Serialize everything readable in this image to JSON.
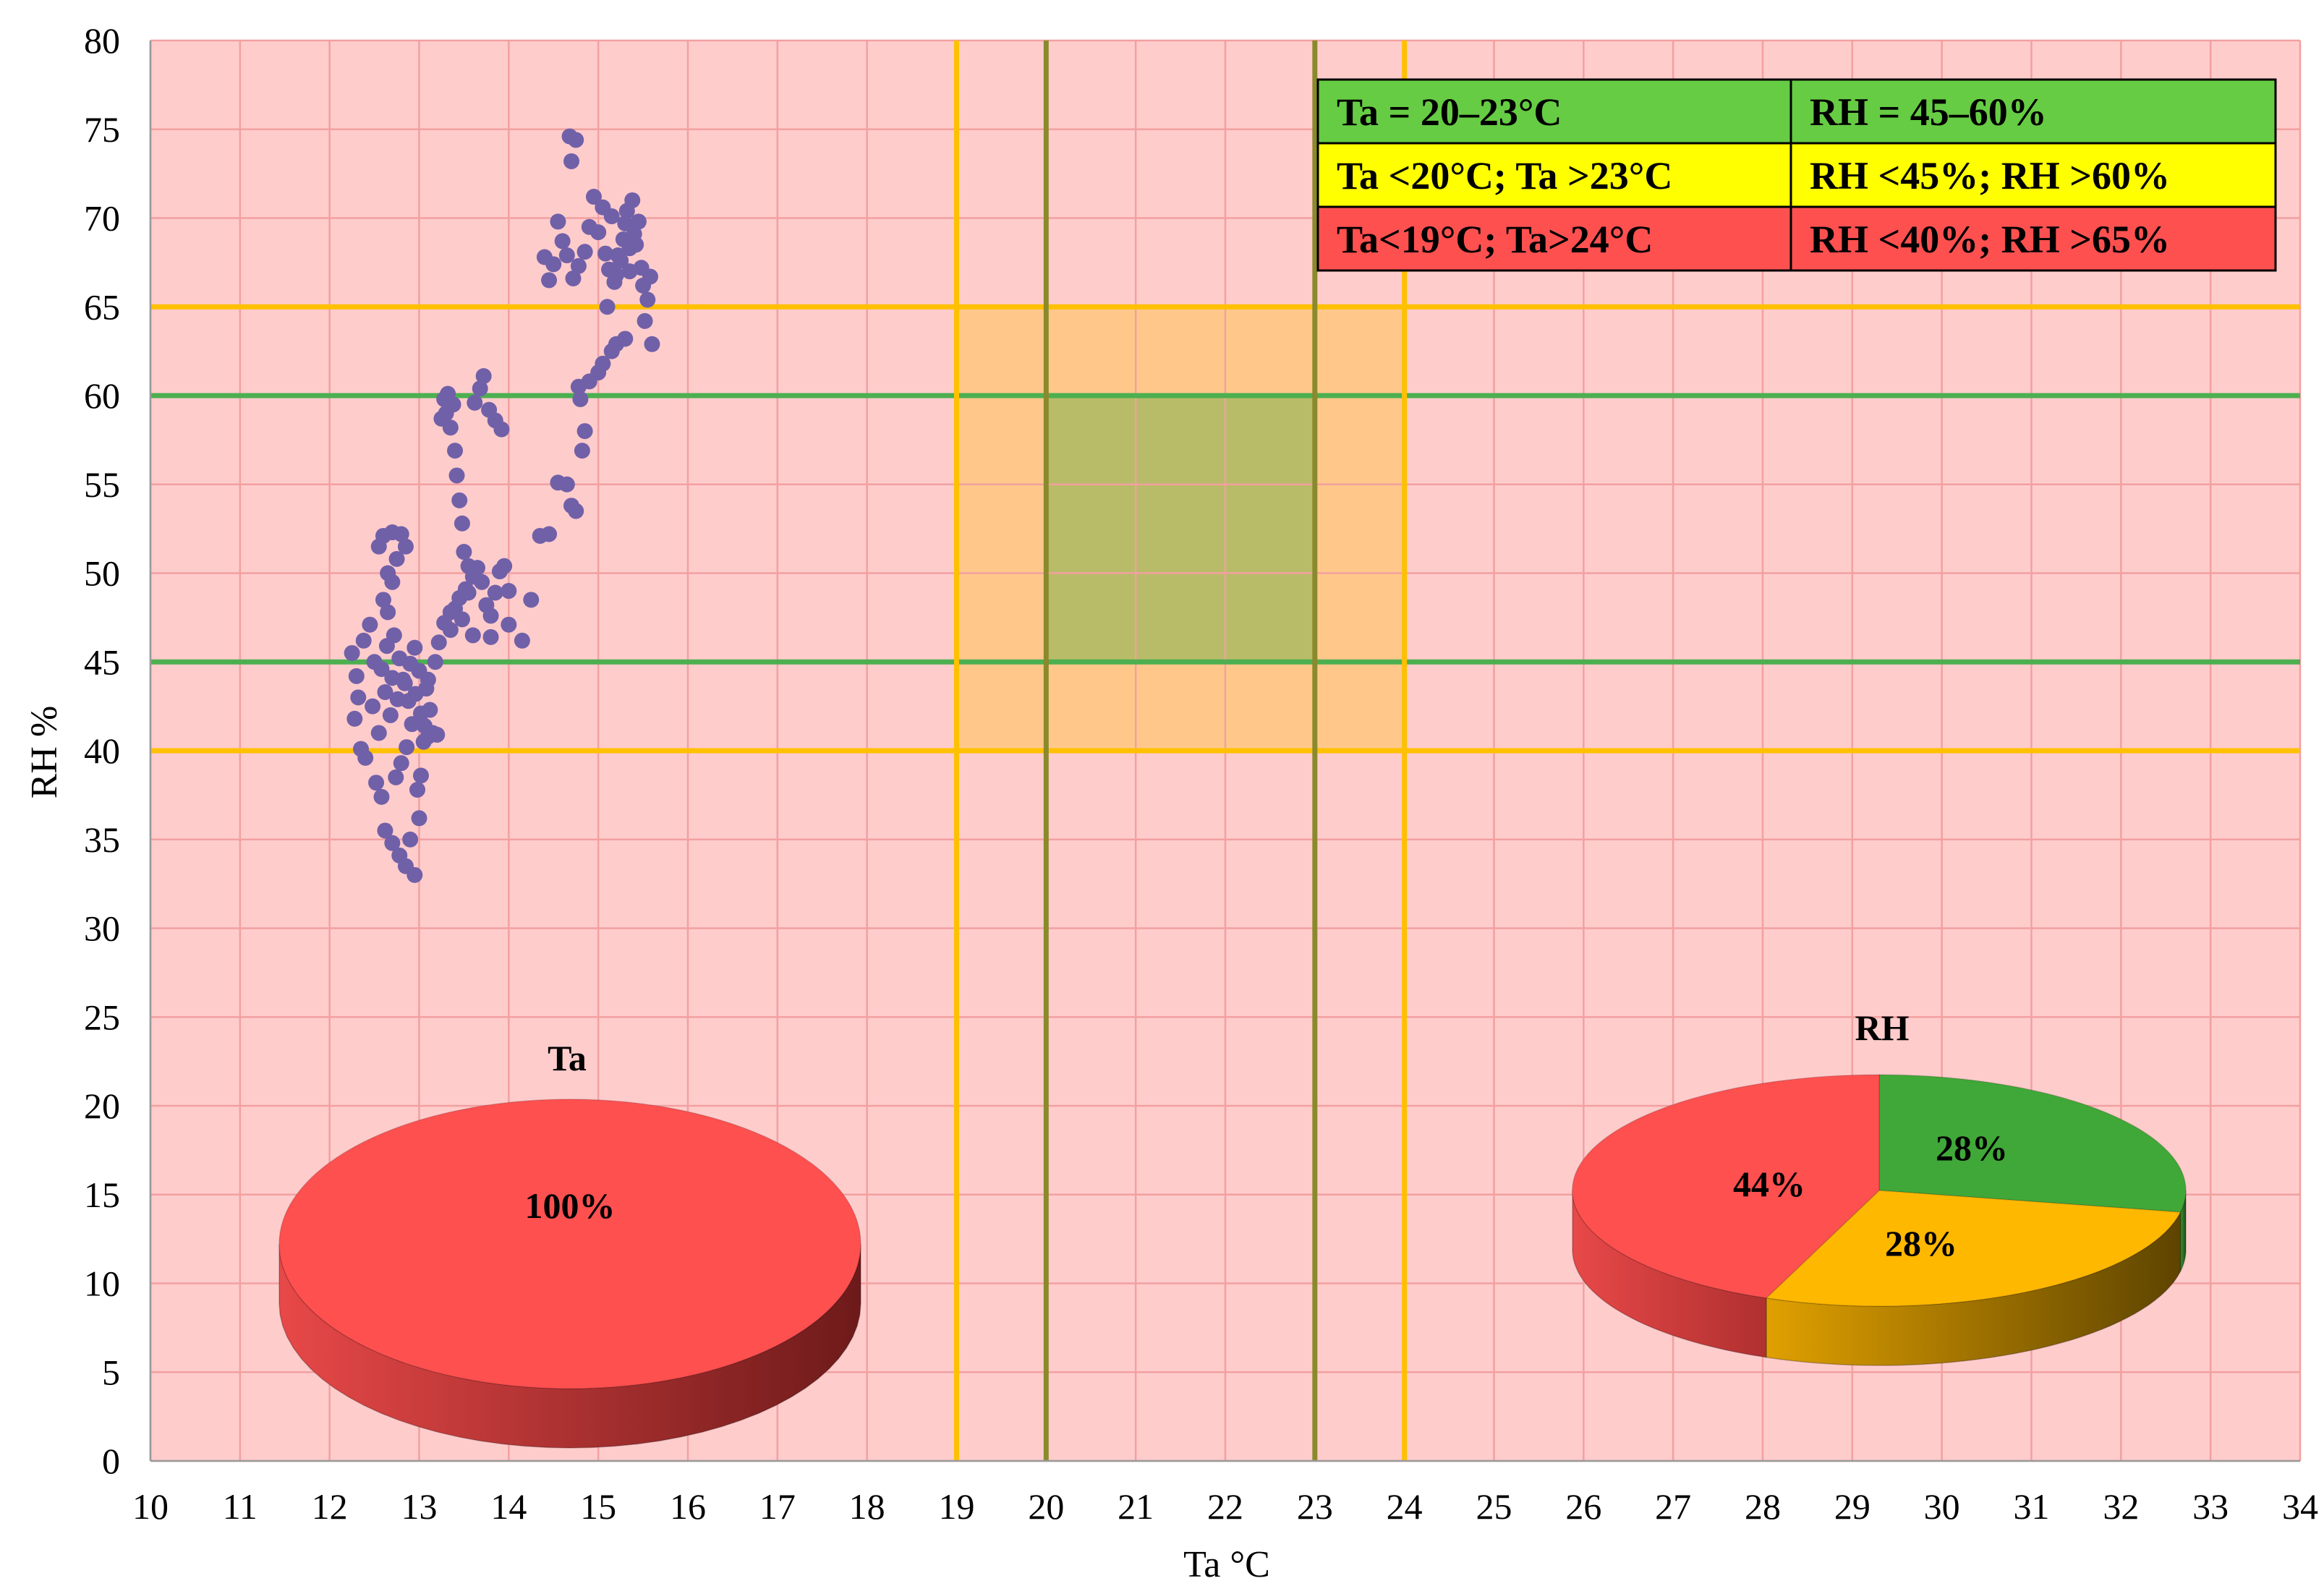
{
  "chart_data": {
    "type": "scatter",
    "xlabel": "Ta °C",
    "ylabel": "RH %",
    "xlim": [
      10,
      34
    ],
    "ylim": [
      0,
      80
    ],
    "x_ticks": [
      "10",
      "11",
      "12",
      "13",
      "14",
      "15",
      "16",
      "17",
      "18",
      "19",
      "20",
      "21",
      "22",
      "23",
      "24",
      "25",
      "26",
      "27",
      "28",
      "29",
      "30",
      "31",
      "32",
      "33",
      "34"
    ],
    "y_ticks": [
      "0",
      "5",
      "10",
      "15",
      "20",
      "25",
      "30",
      "35",
      "40",
      "45",
      "50",
      "55",
      "60",
      "65",
      "70",
      "75",
      "80"
    ],
    "grid": true,
    "background_color": "#FFCCCC",
    "grid_color": "#F2A0A0",
    "point_color": "#7060A8",
    "reference_lines": {
      "vertical": [
        {
          "x": 19,
          "color": "#FFC000"
        },
        {
          "x": 20,
          "color": "#8A8A2C"
        },
        {
          "x": 23,
          "color": "#8A8A2C"
        },
        {
          "x": 24,
          "color": "#FFC000"
        }
      ],
      "horizontal": [
        {
          "y": 40,
          "color": "#FFC000"
        },
        {
          "y": 45,
          "color": "#4CAF50"
        },
        {
          "y": 60,
          "color": "#4CAF50"
        },
        {
          "y": 65,
          "color": "#FFC000"
        }
      ]
    },
    "zones": [
      {
        "x": [
          19,
          24
        ],
        "y": [
          40,
          65
        ],
        "color": "#FFC88A"
      },
      {
        "x": [
          20,
          23
        ],
        "y": [
          45,
          60
        ],
        "color": "#B8BC68"
      }
    ],
    "legend_table": [
      {
        "ta": "Ta = 20–23°C",
        "rh": "RH = 45–60%",
        "color": "#66CC44"
      },
      {
        "ta": "Ta <20°C; Ta >23°C",
        "rh": "RH <45%; RH >60%",
        "color": "#FFFF00"
      },
      {
        "ta": "Ta<19°C; Ta>24°C",
        "rh": "RH <40%; RH >65%",
        "color": "#FF5050"
      }
    ],
    "series": [
      {
        "points": [
          [
            12.25,
            45.5
          ],
          [
            12.3,
            44.2
          ],
          [
            12.32,
            43.0
          ],
          [
            12.28,
            41.8
          ],
          [
            12.35,
            40.1
          ],
          [
            12.4,
            39.6
          ],
          [
            12.38,
            46.2
          ],
          [
            12.45,
            47.1
          ],
          [
            12.5,
            45.0
          ],
          [
            12.48,
            42.5
          ],
          [
            12.55,
            41.0
          ],
          [
            12.52,
            38.2
          ],
          [
            12.58,
            37.4
          ],
          [
            12.62,
            35.5
          ],
          [
            12.7,
            34.8
          ],
          [
            12.78,
            34.1
          ],
          [
            12.85,
            33.5
          ],
          [
            12.95,
            33.0
          ],
          [
            12.9,
            35.0
          ],
          [
            13.0,
            36.2
          ],
          [
            12.98,
            37.8
          ],
          [
            13.02,
            38.6
          ],
          [
            13.05,
            40.5
          ],
          [
            13.1,
            40.8
          ],
          [
            13.15,
            41.0
          ],
          [
            13.2,
            40.9
          ],
          [
            13.12,
            42.3
          ],
          [
            13.08,
            43.5
          ],
          [
            13.0,
            44.5
          ],
          [
            12.95,
            45.8
          ],
          [
            12.6,
            48.5
          ],
          [
            12.65,
            50.0
          ],
          [
            12.55,
            51.5
          ],
          [
            12.6,
            52.1
          ],
          [
            12.7,
            52.3
          ],
          [
            12.8,
            52.2
          ],
          [
            12.85,
            51.5
          ],
          [
            12.75,
            50.8
          ],
          [
            12.7,
            49.5
          ],
          [
            12.65,
            47.8
          ],
          [
            12.72,
            46.5
          ],
          [
            12.78,
            45.2
          ],
          [
            12.82,
            44.0
          ],
          [
            12.88,
            42.8
          ],
          [
            12.92,
            41.5
          ],
          [
            12.86,
            40.2
          ],
          [
            12.8,
            39.3
          ],
          [
            12.74,
            38.5
          ],
          [
            12.68,
            42.0
          ],
          [
            12.62,
            43.3
          ],
          [
            12.58,
            44.6
          ],
          [
            12.64,
            45.9
          ],
          [
            12.7,
            44.1
          ],
          [
            12.76,
            42.9
          ],
          [
            12.84,
            43.8
          ],
          [
            12.9,
            44.9
          ],
          [
            12.96,
            43.2
          ],
          [
            13.02,
            42.1
          ],
          [
            13.06,
            41.4
          ],
          [
            13.1,
            44.0
          ],
          [
            13.18,
            45.0
          ],
          [
            13.22,
            46.1
          ],
          [
            13.28,
            47.2
          ],
          [
            13.35,
            47.8
          ],
          [
            13.25,
            58.7
          ],
          [
            13.3,
            59.0
          ],
          [
            13.28,
            59.8
          ],
          [
            13.32,
            60.1
          ],
          [
            13.38,
            59.5
          ],
          [
            13.35,
            58.2
          ],
          [
            13.4,
            56.9
          ],
          [
            13.42,
            55.5
          ],
          [
            13.45,
            54.1
          ],
          [
            13.48,
            52.8
          ],
          [
            13.5,
            51.2
          ],
          [
            13.55,
            50.4
          ],
          [
            13.52,
            49.1
          ],
          [
            13.45,
            48.6
          ],
          [
            13.4,
            48.0
          ],
          [
            13.35,
            46.8
          ],
          [
            13.48,
            47.4
          ],
          [
            13.55,
            48.9
          ],
          [
            13.6,
            49.8
          ],
          [
            13.65,
            50.3
          ],
          [
            13.7,
            49.5
          ],
          [
            13.75,
            48.2
          ],
          [
            13.8,
            47.6
          ],
          [
            13.85,
            48.9
          ],
          [
            13.9,
            50.1
          ],
          [
            13.95,
            50.4
          ],
          [
            14.0,
            49.0
          ],
          [
            13.62,
            59.6
          ],
          [
            13.68,
            60.4
          ],
          [
            13.72,
            61.1
          ],
          [
            13.78,
            59.2
          ],
          [
            13.85,
            58.6
          ],
          [
            13.92,
            58.1
          ],
          [
            13.6,
            46.5
          ],
          [
            13.8,
            46.4
          ],
          [
            14.0,
            47.1
          ],
          [
            14.15,
            46.2
          ],
          [
            14.25,
            48.5
          ],
          [
            14.35,
            52.1
          ],
          [
            14.45,
            52.2
          ],
          [
            14.55,
            55.1
          ],
          [
            14.65,
            55.0
          ],
          [
            14.7,
            53.8
          ],
          [
            14.75,
            53.5
          ],
          [
            14.82,
            56.9
          ],
          [
            14.85,
            58.0
          ],
          [
            14.8,
            59.8
          ],
          [
            14.78,
            60.5
          ],
          [
            14.9,
            60.8
          ],
          [
            15.0,
            61.3
          ],
          [
            15.05,
            61.8
          ],
          [
            15.15,
            62.5
          ],
          [
            15.2,
            62.9
          ],
          [
            15.3,
            63.2
          ],
          [
            15.1,
            65.0
          ],
          [
            15.2,
            66.8
          ],
          [
            15.25,
            67.6
          ],
          [
            15.35,
            68.3
          ],
          [
            15.4,
            69.1
          ],
          [
            15.3,
            69.7
          ],
          [
            15.15,
            70.1
          ],
          [
            15.05,
            70.6
          ],
          [
            14.95,
            71.2
          ],
          [
            15.0,
            69.2
          ],
          [
            15.08,
            68.0
          ],
          [
            15.12,
            67.1
          ],
          [
            15.18,
            66.4
          ],
          [
            15.22,
            67.9
          ],
          [
            15.28,
            68.8
          ],
          [
            15.32,
            70.4
          ],
          [
            15.38,
            71.0
          ],
          [
            15.42,
            68.5
          ],
          [
            15.48,
            67.2
          ],
          [
            15.5,
            66.2
          ],
          [
            15.55,
            65.4
          ],
          [
            15.58,
            66.7
          ],
          [
            15.52,
            64.2
          ],
          [
            15.6,
            62.9
          ],
          [
            15.45,
            69.8
          ],
          [
            15.35,
            67.0
          ],
          [
            14.9,
            69.5
          ],
          [
            14.85,
            68.1
          ],
          [
            14.78,
            67.3
          ],
          [
            14.72,
            66.6
          ],
          [
            14.65,
            67.9
          ],
          [
            14.6,
            68.7
          ],
          [
            14.55,
            69.8
          ],
          [
            14.5,
            67.4
          ],
          [
            14.45,
            66.5
          ],
          [
            14.4,
            67.8
          ],
          [
            14.68,
            74.6
          ],
          [
            14.75,
            74.4
          ],
          [
            14.7,
            73.2
          ]
        ]
      }
    ],
    "pies": [
      {
        "title": "Ta",
        "slices": [
          {
            "value": 100,
            "label": "100%",
            "color": "#FF5050"
          }
        ]
      },
      {
        "title": "RH",
        "slices": [
          {
            "value": 28,
            "label": "28%",
            "color": "#40A838"
          },
          {
            "value": 28,
            "label": "28%",
            "color": "#FFB800"
          },
          {
            "value": 44,
            "label": "44%",
            "color": "#FF5050"
          }
        ]
      }
    ]
  }
}
